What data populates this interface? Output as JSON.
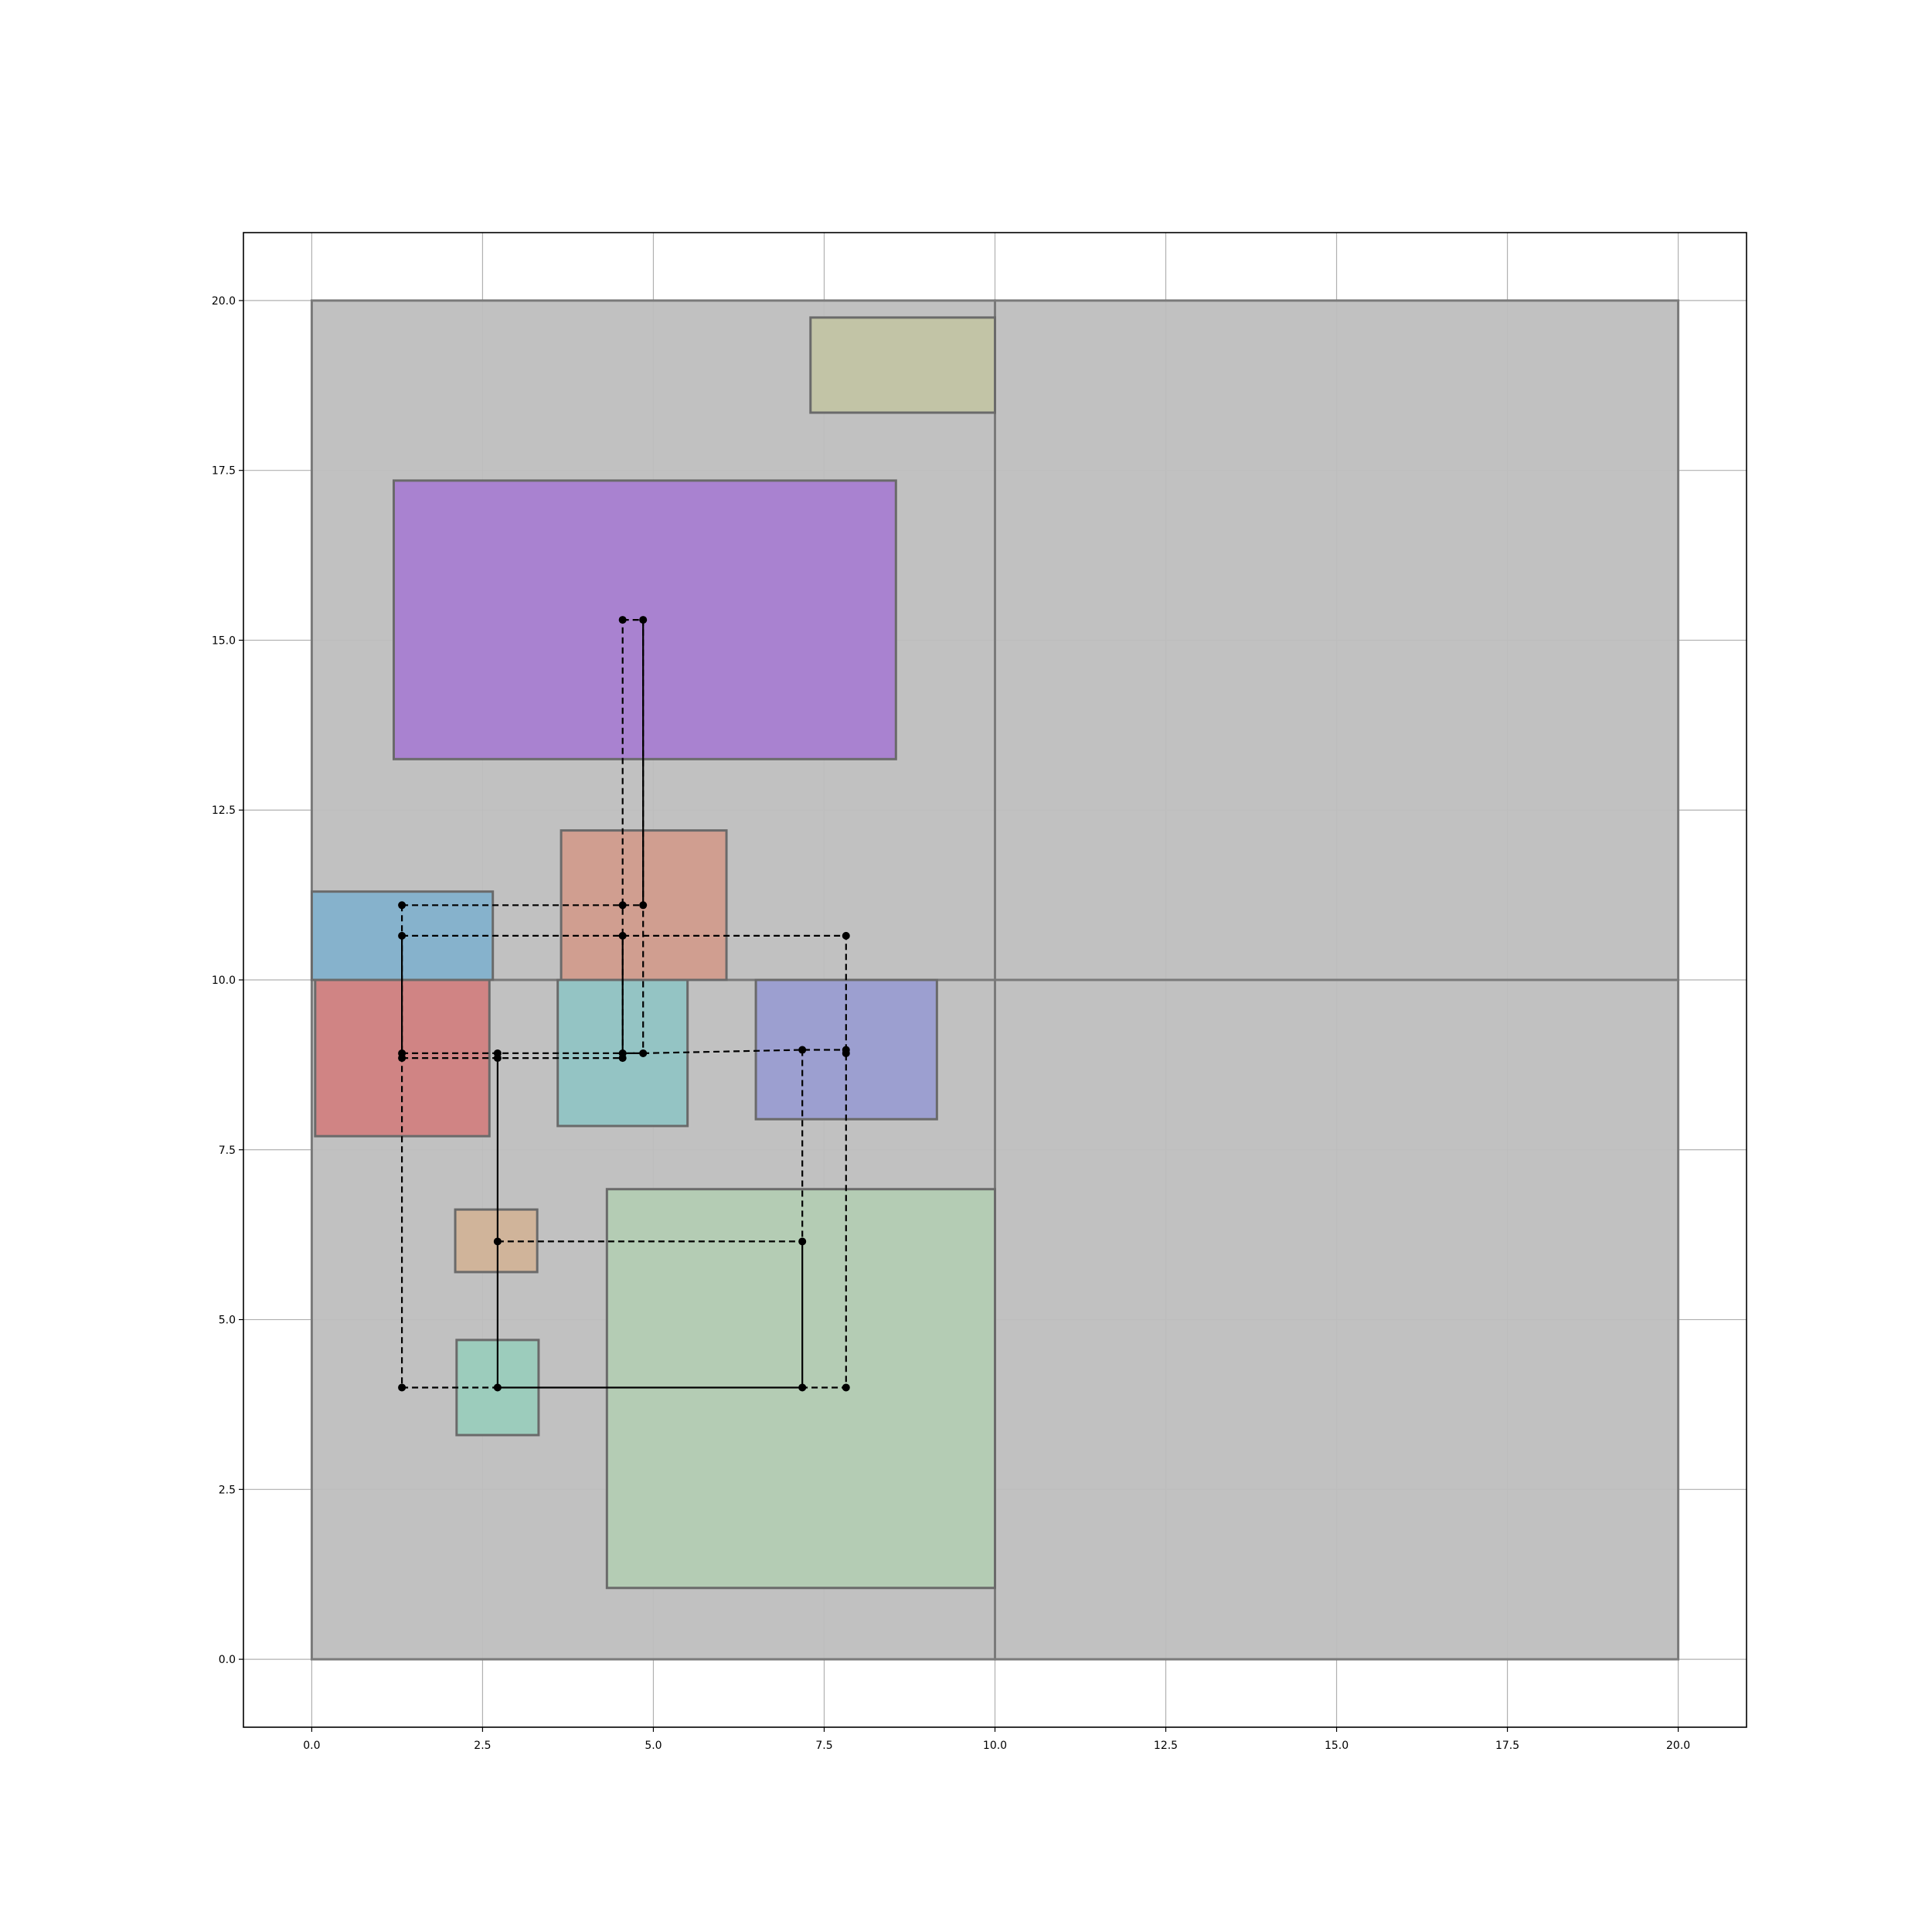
{
  "chart_data": {
    "type": "scatter",
    "title": "",
    "xlabel": "",
    "ylabel": "",
    "xlim": [
      -1,
      21
    ],
    "ylim": [
      -1,
      21
    ],
    "grid": true,
    "x_ticks": [
      "0.0",
      "2.5",
      "5.0",
      "7.5",
      "10.0",
      "12.5",
      "15.0",
      "17.5",
      "20.0"
    ],
    "y_ticks": [
      "0.0",
      "2.5",
      "5.0",
      "7.5",
      "10.0",
      "12.5",
      "15.0",
      "17.5",
      "20.0"
    ],
    "regions": [
      {
        "x0": 0,
        "y0": 10,
        "x1": 10,
        "y1": 20,
        "color": "#bebebe"
      },
      {
        "x0": 10,
        "y0": 10,
        "x1": 20,
        "y1": 20,
        "color": "#bebebe"
      },
      {
        "x0": 0,
        "y0": 0,
        "x1": 10,
        "y1": 10,
        "color": "#bebebe"
      },
      {
        "x0": 10,
        "y0": 0,
        "x1": 20,
        "y1": 10,
        "color": "#bebebe"
      }
    ],
    "blocks": [
      {
        "x0": 7.3,
        "y0": 18.35,
        "x1": 10.0,
        "y1": 19.75,
        "color": "#c2c4a6"
      },
      {
        "x0": 1.2,
        "y0": 13.25,
        "x1": 8.55,
        "y1": 17.35,
        "color": "#a982d0"
      },
      {
        "x0": 3.65,
        "y0": 10.0,
        "x1": 6.07,
        "y1": 12.2,
        "color": "#d09e90"
      },
      {
        "x0": 0.0,
        "y0": 10.0,
        "x1": 2.65,
        "y1": 11.3,
        "color": "#86b2cc"
      },
      {
        "x0": 0.05,
        "y0": 7.7,
        "x1": 2.6,
        "y1": 10.0,
        "color": "#d08484"
      },
      {
        "x0": 3.6,
        "y0": 7.85,
        "x1": 5.5,
        "y1": 10.0,
        "color": "#94c4c4"
      },
      {
        "x0": 6.5,
        "y0": 7.95,
        "x1": 9.15,
        "y1": 10.0,
        "color": "#9c9fd0"
      },
      {
        "x0": 2.1,
        "y0": 5.7,
        "x1": 3.3,
        "y1": 6.62,
        "color": "#d0b49a"
      },
      {
        "x0": 2.12,
        "y0": 3.3,
        "x1": 3.32,
        "y1": 4.7,
        "color": "#9cccbc"
      },
      {
        "x0": 4.32,
        "y0": 1.05,
        "x1": 10.0,
        "y1": 6.92,
        "color": "#b4ccb4"
      }
    ],
    "nets": [
      {
        "style": "dashed",
        "points": [
          [
            4.55,
            15.3
          ],
          [
            4.85,
            15.3
          ],
          [
            4.85,
            11.1
          ],
          [
            4.85,
            8.92
          ],
          [
            4.55,
            8.92
          ],
          [
            4.55,
            10.65
          ],
          [
            4.55,
            11.1
          ],
          [
            4.55,
            15.3
          ]
        ]
      },
      {
        "style": "solid",
        "points": [
          [
            4.85,
            15.3
          ],
          [
            4.85,
            11.1
          ]
        ]
      },
      {
        "style": "dashed",
        "points": [
          [
            1.32,
            11.1
          ],
          [
            4.55,
            11.1
          ],
          [
            4.85,
            11.1
          ]
        ]
      },
      {
        "style": "solid",
        "points": [
          [
            4.55,
            10.65
          ],
          [
            4.55,
            8.92
          ]
        ]
      },
      {
        "style": "dashed",
        "points": [
          [
            1.32,
            11.1
          ],
          [
            1.32,
            10.65
          ],
          [
            1.32,
            8.85
          ],
          [
            1.32,
            4.0
          ]
        ]
      },
      {
        "style": "solid",
        "points": [
          [
            1.32,
            10.65
          ],
          [
            1.32,
            8.92
          ]
        ]
      },
      {
        "style": "dashed",
        "points": [
          [
            1.32,
            10.65
          ],
          [
            4.55,
            10.65
          ],
          [
            7.82,
            10.65
          ],
          [
            7.82,
            8.97
          ],
          [
            7.82,
            4.0
          ],
          [
            7.18,
            4.0
          ]
        ]
      },
      {
        "style": "dashed",
        "points": [
          [
            1.32,
            8.92
          ],
          [
            2.72,
            8.92
          ],
          [
            4.55,
            8.92
          ],
          [
            4.85,
            8.92
          ],
          [
            7.18,
            8.97
          ],
          [
            7.82,
            8.97
          ]
        ]
      },
      {
        "style": "dashed",
        "points": [
          [
            1.32,
            8.85
          ],
          [
            2.72,
            8.85
          ],
          [
            4.55,
            8.85
          ]
        ]
      },
      {
        "style": "solid",
        "points": [
          [
            2.72,
            8.85
          ],
          [
            2.72,
            6.15
          ],
          [
            2.72,
            4.0
          ]
        ]
      },
      {
        "style": "dashed",
        "points": [
          [
            2.72,
            6.15
          ],
          [
            7.18,
            6.15
          ]
        ]
      },
      {
        "style": "dashed",
        "points": [
          [
            7.18,
            8.97
          ],
          [
            7.18,
            6.15
          ]
        ]
      },
      {
        "style": "solid",
        "points": [
          [
            7.18,
            6.15
          ],
          [
            7.18,
            4.0
          ]
        ]
      },
      {
        "style": "solid",
        "points": [
          [
            2.72,
            4.0
          ],
          [
            7.18,
            4.0
          ]
        ]
      },
      {
        "style": "dashed",
        "points": [
          [
            1.32,
            4.0
          ],
          [
            2.72,
            4.0
          ]
        ]
      }
    ],
    "points": [
      [
        4.55,
        15.3
      ],
      [
        4.85,
        15.3
      ],
      [
        1.32,
        11.1
      ],
      [
        4.55,
        11.1
      ],
      [
        4.85,
        11.1
      ],
      [
        1.32,
        10.65
      ],
      [
        4.55,
        10.65
      ],
      [
        7.82,
        10.65
      ],
      [
        1.32,
        8.92
      ],
      [
        2.72,
        8.92
      ],
      [
        4.55,
        8.92
      ],
      [
        4.85,
        8.92
      ],
      [
        7.18,
        8.97
      ],
      [
        7.82,
        8.97
      ],
      [
        1.32,
        8.85
      ],
      [
        2.72,
        8.85
      ],
      [
        4.55,
        8.85
      ],
      [
        7.82,
        8.92
      ],
      [
        2.72,
        6.15
      ],
      [
        7.18,
        6.15
      ],
      [
        1.32,
        4.0
      ],
      [
        2.72,
        4.0
      ],
      [
        7.18,
        4.0
      ],
      [
        7.82,
        4.0
      ]
    ]
  }
}
